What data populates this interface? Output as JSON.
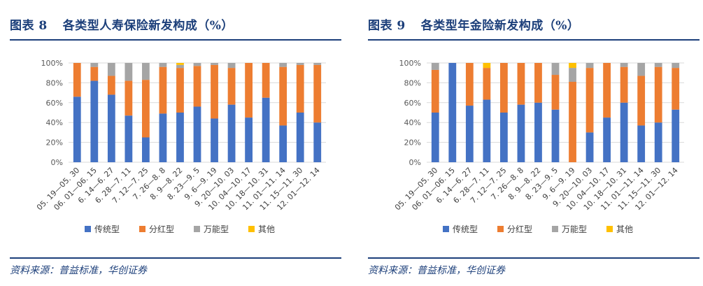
{
  "figures": [
    {
      "label": "图表 8",
      "title": "各类型人寿保险新发构成（%）",
      "source": "资料来源：普益标准，华创证券"
    },
    {
      "label": "图表 9",
      "title": "各类型年金险新发构成（%）",
      "source": "资料来源：普益标准，华创证券"
    }
  ],
  "chart_data": [
    {
      "type": "bar",
      "stacked": true,
      "title": "图表 8 各类型人寿保险新发构成（%）",
      "categories": [
        "05. 19—05. 30",
        "06. 01—06. 15",
        "6. 14—6. 27",
        "6. 28—7. 11",
        "7. 12—7. 25",
        "7. 26—8. 8",
        "8. 9—8. 22",
        "8. 23—9. 5",
        "9. 6—9. 19",
        "9. 20—10. 03",
        "10. 04—10. 17",
        "10. 18—10. 31",
        "11. 01—11. 14",
        "11. 15—11. 30",
        "12. 01—12. 14"
      ],
      "yticks": [
        "0%",
        "20%",
        "40%",
        "60%",
        "80%",
        "100%"
      ],
      "ylim": [
        0,
        100
      ],
      "series": [
        {
          "name": "传统型",
          "color": "#4472c4",
          "values": [
            66,
            82,
            68,
            47,
            25,
            49,
            50,
            56,
            44,
            58,
            45,
            65,
            37,
            50,
            40
          ]
        },
        {
          "name": "分红型",
          "color": "#ed7d31",
          "values": [
            34,
            14,
            19,
            35,
            58,
            47,
            45,
            41,
            54,
            37,
            55,
            35,
            59,
            48,
            58
          ]
        },
        {
          "name": "万能型",
          "color": "#a5a5a5",
          "values": [
            0,
            4,
            13,
            18,
            17,
            4,
            3,
            3,
            2,
            5,
            0,
            0,
            4,
            2,
            2
          ]
        },
        {
          "name": "其他",
          "color": "#ffc000",
          "values": [
            0,
            0,
            0,
            0,
            0,
            0,
            2,
            0,
            0,
            0,
            0,
            0,
            0,
            0,
            0
          ]
        }
      ]
    },
    {
      "type": "bar",
      "stacked": true,
      "title": "图表 9 各类型年金险新发构成（%）",
      "categories": [
        "05. 19—05. 30",
        "06. 01—06. 15",
        "6. 14—6. 27",
        "6. 28—7. 11",
        "7. 12—7. 25",
        "7. 26—8. 8",
        "8. 9—8. 22",
        "8. 23—9. 5",
        "9. 6—9. 19",
        "9. 20—10. 03",
        "10. 04—10. 17",
        "10. 18—10. 31",
        "11. 01—11. 14",
        "11. 15—11. 30",
        "12. 01—12. 14"
      ],
      "yticks": [
        "0%",
        "20%",
        "40%",
        "60%",
        "80%",
        "100%"
      ],
      "ylim": [
        0,
        100
      ],
      "series": [
        {
          "name": "传统型",
          "color": "#4472c4",
          "values": [
            50,
            100,
            57,
            63,
            50,
            58,
            60,
            53,
            0,
            30,
            45,
            60,
            37,
            40,
            53
          ]
        },
        {
          "name": "分红型",
          "color": "#ed7d31",
          "values": [
            43,
            0,
            43,
            32,
            50,
            42,
            40,
            35,
            81,
            65,
            55,
            36,
            50,
            56,
            42
          ]
        },
        {
          "name": "万能型",
          "color": "#a5a5a5",
          "values": [
            7,
            0,
            0,
            0,
            0,
            0,
            0,
            12,
            14,
            5,
            0,
            4,
            13,
            4,
            5
          ]
        },
        {
          "name": "其他",
          "color": "#ffc000",
          "values": [
            0,
            0,
            0,
            5,
            0,
            0,
            0,
            0,
            5,
            0,
            0,
            0,
            0,
            0,
            0
          ]
        }
      ]
    }
  ]
}
